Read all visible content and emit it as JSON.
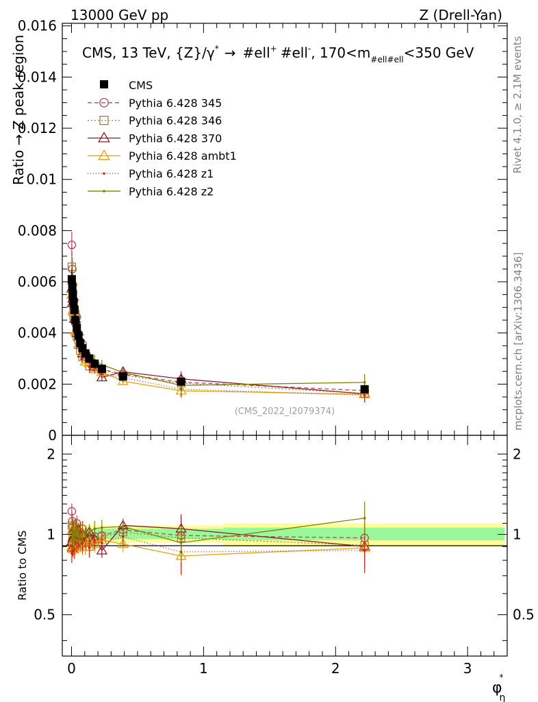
{
  "header": {
    "left": "13000 GeV pp",
    "right": "Z (Drell-Yan)"
  },
  "side_labels": {
    "rivet": "Rivet 4.1.0, ≥ 2.1M events",
    "mcplots": "mcplots.cern.ch [arXiv:1306.3436]"
  },
  "chart_data": {
    "type": "scatter",
    "title": "CMS, 13 TeV, {Z}/γ* → #ell⁺ #ell⁻, 170<m_{#ell#ell}<350 GeV",
    "title_parts": {
      "a": "CMS, 13 TeV, {Z}/",
      "gamma": "γ",
      "star": "*",
      "arrow": "→",
      "b": "#ell",
      "plus": "+",
      "c": "#ell",
      "minus": "-",
      "d": ", 170<m",
      "sub": "#ell#ell",
      "e": "<350 GeV"
    },
    "watermark": "(CMS_2022_I2079374)",
    "ylabel": "Ratio → Z peak region",
    "ylabel_ratio": "Ratio to CMS",
    "xlabel_main": "φ",
    "xlabel_sup": "*",
    "xlabel_sub": "η",
    "xlim": [
      -0.07,
      3.3
    ],
    "ylim": [
      0,
      0.0161
    ],
    "ratio_ylim": [
      0.35,
      2.35
    ],
    "x_ticks": [
      0,
      1,
      2,
      3
    ],
    "y_ticks": [
      0,
      0.002,
      0.004,
      0.006,
      0.008,
      0.01,
      0.012,
      0.014,
      0.016
    ],
    "y_tick_labels": [
      "0",
      "0.002",
      "0.004",
      "0.006",
      "0.008",
      "0.01",
      "0.012",
      "0.014",
      "0.016"
    ],
    "ratio_ticks": [
      0.5,
      1,
      2
    ],
    "ratio_tick_labels": [
      "0.5",
      "1",
      "2"
    ],
    "legend_position": "top-left",
    "data": {
      "name": "CMS",
      "x": [
        0.002,
        0.006,
        0.01,
        0.015,
        0.022,
        0.03,
        0.04,
        0.052,
        0.066,
        0.083,
        0.105,
        0.135,
        0.175,
        0.23,
        0.39,
        0.83,
        2.22
      ],
      "y": [
        0.0061,
        0.0058,
        0.0055,
        0.0052,
        0.0049,
        0.0045,
        0.0042,
        0.0039,
        0.0036,
        0.0034,
        0.0032,
        0.003,
        0.0028,
        0.0026,
        0.0023,
        0.0021,
        0.0018
      ],
      "band_inner": [
        {
          "x0": -0.02,
          "x1": 1.15,
          "lo": 0.96,
          "hi": 1.05
        },
        {
          "x0": 1.15,
          "x1": 3.28,
          "lo": 0.95,
          "hi": 1.06
        }
      ],
      "band_outer": [
        {
          "x0": -0.02,
          "x1": 0.1,
          "lo": 0.88,
          "hi": 1.12
        },
        {
          "x0": 0.1,
          "x1": 1.15,
          "lo": 0.93,
          "hi": 1.08
        },
        {
          "x0": 1.15,
          "x1": 3.28,
          "lo": 0.9,
          "hi": 1.1
        }
      ]
    },
    "series": [
      {
        "name": "Pythia 6.428 345",
        "color": "#c0405a",
        "dash": "6,4",
        "marker": "circle",
        "ratio": [
          1.22,
          1.12,
          1.07,
          0.95,
          1.02,
          0.97,
          1.1,
          0.94,
          1.02,
          1.05,
          0.98,
          0.95,
          0.98,
          0.99,
          1.04,
          0.99,
          0.97
        ],
        "err": 0.07
      },
      {
        "name": "Pythia 6.428 346",
        "color": "#a08030",
        "dash": "2,3",
        "marker": "square",
        "ratio": [
          1.08,
          0.94,
          1.01,
          0.9,
          0.97,
          1.05,
          0.92,
          0.99,
          0.92,
          0.9,
          0.93,
          0.9,
          0.95,
          0.98,
          1.02,
          0.97,
          0.91
        ],
        "err": 0.07
      },
      {
        "name": "Pythia 6.428 370",
        "color": "#8c1a2a",
        "dash": "",
        "marker": "triangle",
        "ratio": [
          0.94,
          0.89,
          0.97,
          1.04,
          0.93,
          1.01,
          0.95,
          1.04,
          0.98,
          0.94,
          0.97,
          1.02,
          0.96,
          0.87,
          1.08,
          1.05,
          0.9
        ],
        "err": 0.06
      },
      {
        "name": "Pythia 6.428 ambt1",
        "color": "#f0a000",
        "dash": "",
        "marker": "triangle",
        "ratio": [
          0.9,
          1.04,
          0.88,
          0.95,
          1.02,
          0.9,
          0.97,
          0.91,
          1.01,
          0.96,
          0.9,
          0.94,
          0.92,
          0.95,
          0.92,
          0.83,
          0.89
        ],
        "err": 0.07
      },
      {
        "name": "Pythia 6.428 z1",
        "color": "#d02020",
        "dash": "1,3",
        "marker": "dot",
        "ratio": [
          0.85,
          0.97,
          0.9,
          1.03,
          0.88,
          0.99,
          0.93,
          0.96,
          1.03,
          0.93,
          0.97,
          0.89,
          0.95,
          0.93,
          0.98,
          0.86,
          0.87
        ],
        "err": 0.08
      },
      {
        "name": "Pythia 6.428 z2",
        "color": "#808000",
        "dash": "",
        "marker": "dot",
        "ratio": [
          1.0,
          1.06,
          0.94,
          1.01,
          0.96,
          1.06,
          0.99,
          1.02,
          0.95,
          1.03,
          0.99,
          1.02,
          1.05,
          1.06,
          1.07,
          0.93,
          1.15
        ],
        "err": 0.07
      }
    ]
  }
}
